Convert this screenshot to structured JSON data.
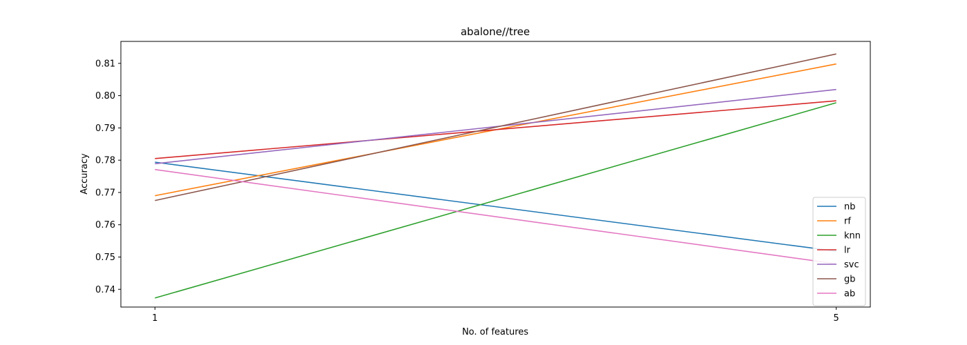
{
  "chart_data": {
    "type": "line",
    "title": "abalone//tree",
    "xlabel": "No. of features",
    "ylabel": "Accuracy",
    "x": [
      1,
      5
    ],
    "xticks": [
      "1",
      "5"
    ],
    "yticks": [
      "0.74",
      "0.75",
      "0.76",
      "0.77",
      "0.78",
      "0.79",
      "0.80",
      "0.81"
    ],
    "ylim": [
      0.7345,
      0.8168
    ],
    "xlim": [
      0.8,
      5.2
    ],
    "grid": false,
    "legend_position": "lower-right",
    "series": [
      {
        "name": "nb",
        "color": "#1f77b4",
        "values": [
          0.7794,
          0.7518
        ]
      },
      {
        "name": "rf",
        "color": "#ff7f0e",
        "values": [
          0.769,
          0.8098
        ]
      },
      {
        "name": "knn",
        "color": "#2ca02c",
        "values": [
          0.7373,
          0.7978
        ]
      },
      {
        "name": "lr",
        "color": "#d62728",
        "values": [
          0.7805,
          0.7984
        ]
      },
      {
        "name": "svc",
        "color": "#9467bd",
        "values": [
          0.7789,
          0.8019
        ]
      },
      {
        "name": "gb",
        "color": "#8c564b",
        "values": [
          0.7675,
          0.8129
        ]
      },
      {
        "name": "ab",
        "color": "#e377c2",
        "values": [
          0.7771,
          0.7479
        ]
      }
    ]
  }
}
